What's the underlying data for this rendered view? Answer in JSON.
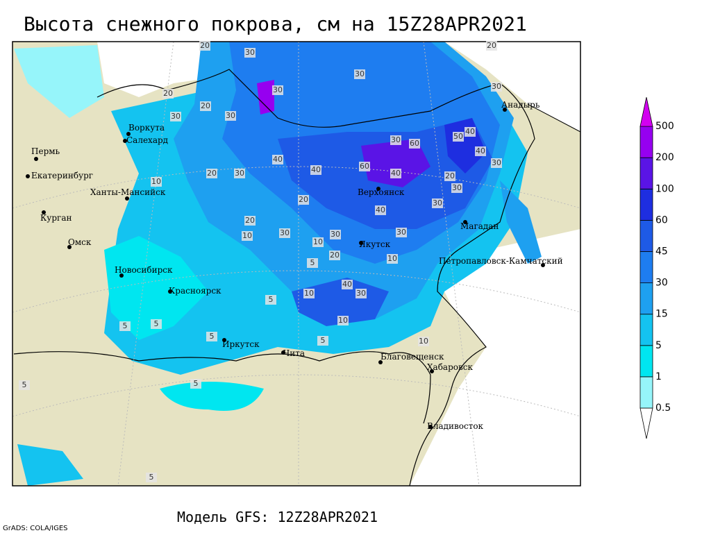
{
  "header": {
    "title": "Высота снежного покрова, см на 15Z28APR2021"
  },
  "footer": {
    "model": "Модель GFS: 12Z28APR2021",
    "credit": "GrADS: COLA/IGES"
  },
  "cities": [
    "Воркута",
    "Салехард",
    "Пермь",
    "Екатеринбург",
    "Ханты-Мансийск",
    "Курган",
    "Омск",
    "Новосибирск",
    "Красноярск",
    "Иркутск",
    "Чита",
    "Благовещенск",
    "Хабаровск",
    "Владивосток",
    "Якутск",
    "Верхоянск",
    "Магадан",
    "Петропавловск-Камчатский",
    "Анадырь"
  ],
  "contour_labels": [
    20,
    30,
    30,
    20,
    20,
    20,
    30,
    30,
    30,
    30,
    40,
    50,
    60,
    30,
    40,
    40,
    60,
    40,
    20,
    30,
    20,
    40,
    20,
    10,
    30,
    30,
    30,
    10,
    20,
    5,
    10,
    40,
    30,
    10,
    5,
    10,
    5,
    10,
    5,
    5,
    5,
    10,
    30,
    30,
    20,
    30,
    40,
    5,
    5,
    5
  ],
  "legend": {
    "levels": [
      0.5,
      1,
      5,
      15,
      30,
      45,
      60,
      100,
      200,
      500
    ],
    "colors": [
      "#ffffff",
      "#96f5fa",
      "#00e6f0",
      "#14c3f0",
      "#1ea0f0",
      "#1e7df0",
      "#1e5ae6",
      "#1e2ee0",
      "#5a14e6",
      "#9600f0",
      "#d200f0"
    ]
  }
}
